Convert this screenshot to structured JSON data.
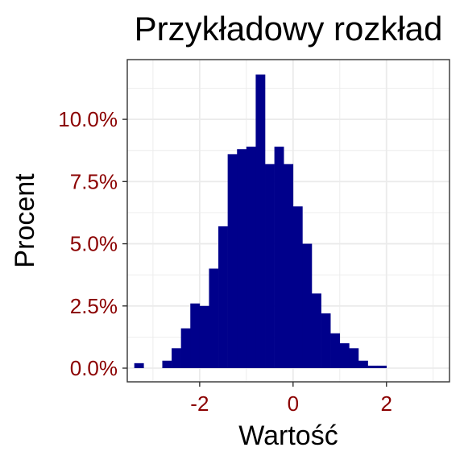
{
  "chart_data": {
    "type": "bar",
    "title": "Przykładowy rozkład",
    "xlabel": "Wartość",
    "ylabel": "Procent",
    "xlim": [
      -3.55,
      3.35
    ],
    "ylim": [
      -0.55,
      12.4
    ],
    "bin_width": 0.2,
    "x_ticks": [
      {
        "value": -2,
        "label": "-2"
      },
      {
        "value": 0,
        "label": "0"
      },
      {
        "value": 2,
        "label": "2"
      }
    ],
    "y_ticks": [
      {
        "value": 0,
        "label": "0.0%"
      },
      {
        "value": 2.5,
        "label": "2.5%"
      },
      {
        "value": 5,
        "label": "5.0%"
      },
      {
        "value": 7.5,
        "label": "7.5%"
      },
      {
        "value": 10,
        "label": "10.0%"
      }
    ],
    "bins": [
      {
        "x0": -3.4,
        "x1": -3.2,
        "value": 0.2
      },
      {
        "x0": -3.2,
        "x1": -3.0,
        "value": 0.0
      },
      {
        "x0": -3.0,
        "x1": -2.8,
        "value": 0.0
      },
      {
        "x0": -2.8,
        "x1": -2.6,
        "value": 0.3
      },
      {
        "x0": -2.6,
        "x1": -2.4,
        "value": 0.8
      },
      {
        "x0": -2.4,
        "x1": -2.2,
        "value": 1.6
      },
      {
        "x0": -2.2,
        "x1": -2.0,
        "value": 2.6
      },
      {
        "x0": -2.0,
        "x1": -1.8,
        "value": 2.5
      },
      {
        "x0": -1.8,
        "x1": -1.6,
        "value": 4.0
      },
      {
        "x0": -1.6,
        "x1": -1.4,
        "value": 5.7
      },
      {
        "x0": -1.4,
        "x1": -1.2,
        "value": 8.6
      },
      {
        "x0": -1.2,
        "x1": -1.0,
        "value": 8.8
      },
      {
        "x0": -1.0,
        "x1": -0.8,
        "value": 8.9
      },
      {
        "x0": -0.8,
        "x1": -0.6,
        "value": 11.8
      },
      {
        "x0": -0.6,
        "x1": -0.4,
        "value": 8.2
      },
      {
        "x0": -0.4,
        "x1": -0.2,
        "value": 8.9
      },
      {
        "x0": -0.2,
        "x1": 0.0,
        "value": 8.2
      },
      {
        "x0": 0.0,
        "x1": 0.2,
        "value": 6.5
      },
      {
        "x0": 0.2,
        "x1": 0.4,
        "value": 5.0
      },
      {
        "x0": 0.4,
        "x1": 0.6,
        "value": 3.0
      },
      {
        "x0": 0.6,
        "x1": 0.8,
        "value": 2.2
      },
      {
        "x0": 0.8,
        "x1": 1.0,
        "value": 1.4
      },
      {
        "x0": 1.0,
        "x1": 1.2,
        "value": 1.0
      },
      {
        "x0": 1.2,
        "x1": 1.4,
        "value": 0.8
      },
      {
        "x0": 1.4,
        "x1": 1.6,
        "value": 0.3
      },
      {
        "x0": 1.6,
        "x1": 1.8,
        "value": 0.1
      },
      {
        "x0": 1.8,
        "x1": 2.0,
        "value": 0.1
      }
    ],
    "grid": true,
    "colors": {
      "bar": "#00008B",
      "tick_label": "#8B0000",
      "grid": "#EBEBEB",
      "panel_border": "#333333"
    }
  }
}
